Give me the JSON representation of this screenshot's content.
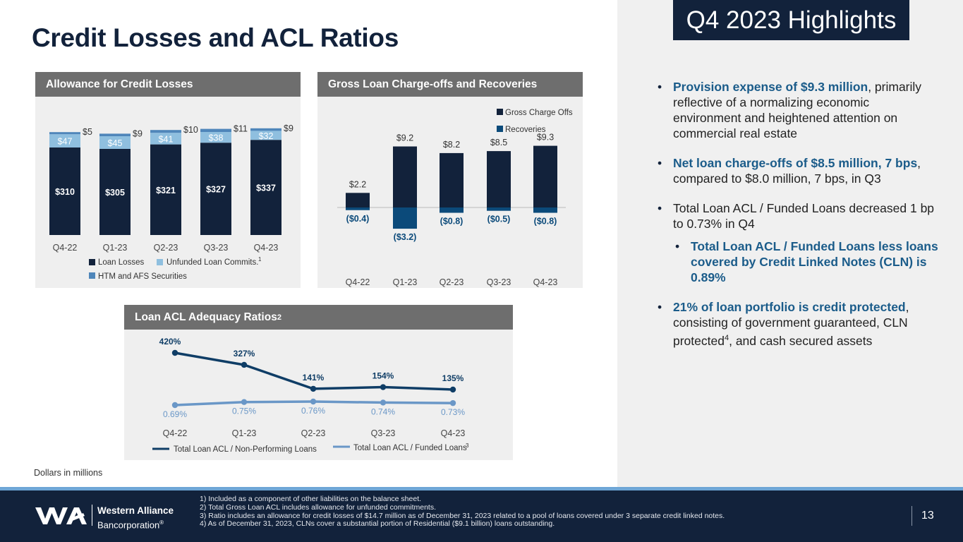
{
  "title": "Credit Losses and ACL Ratios",
  "badge": "Q4 2023 Highlights",
  "units_note": "Dollars in millions",
  "bullets": [
    {
      "highlight": "Provision expense of $9.3 million",
      "text": ", primarily reflective of a normalizing economic environment and heightened attention on commercial real estate"
    },
    {
      "highlight": "Net loan charge-offs of $8.5 million, 7 bps",
      "text": ", compared to $8.0 million, 7 bps, in Q3"
    },
    {
      "text": "Total Loan ACL / Funded Loans decreased 1 bp to 0.73% in Q4"
    },
    {
      "highlight": "Total Loan ACL / Funded Loans less loans covered by Credit Linked Notes (CLN) is 0.89%"
    },
    {
      "highlight": "21% of loan portfolio is credit protected",
      "text1": ", consisting of government guaranteed, CLN protected",
      "sup": "4",
      "text2": ", and cash secured assets"
    }
  ],
  "footer": {
    "company_line1": "Western Alliance",
    "company_line2": "Bancorporation",
    "reg": "®",
    "notes": [
      "1)   Included as a component of other liabilities on the balance sheet.",
      "2)   Total Gross Loan ACL includes allowance for unfunded commitments.",
      "3)   Ratio includes an allowance for credit losses of $14.7 million as of December 31, 2023 related to a pool of loans covered under 3 separate credit linked notes.",
      "4)   As of December 31, 2023, CLNs cover a substantial portion of Residential ($9.1 billion) loans outstanding."
    ],
    "page_number": "13"
  },
  "colors": {
    "navy": "#12223b",
    "light_blue": "#8fbfdf",
    "mid_blue": "#4f86ba",
    "dark_blue": "#0b4a7a",
    "line_dark": "#0f3d66",
    "line_light": "#6a97c7"
  },
  "chart_data": [
    {
      "type": "bar",
      "title": "Allowance for Credit Losses",
      "categories": [
        "Q4-22",
        "Q1-23",
        "Q2-23",
        "Q3-23",
        "Q4-23"
      ],
      "series": [
        {
          "name": "Loan Losses",
          "values": [
            310,
            305,
            321,
            327,
            337
          ],
          "labels": [
            "$310",
            "$305",
            "$321",
            "$327",
            "$337"
          ]
        },
        {
          "name": "Unfunded Loan Commits.",
          "sup": "1",
          "values": [
            47,
            45,
            41,
            38,
            32
          ],
          "labels": [
            "$47",
            "$45",
            "$41",
            "$38",
            "$32"
          ]
        },
        {
          "name": "HTM and AFS Securities",
          "values": [
            5,
            9,
            10,
            11,
            9
          ],
          "labels": [
            "$5",
            "$9",
            "$10",
            "$11",
            "$9"
          ]
        }
      ]
    },
    {
      "type": "bar",
      "title": "Gross Loan Charge-offs and Recoveries",
      "categories": [
        "Q4-22",
        "Q1-23",
        "Q2-23",
        "Q3-23",
        "Q4-23"
      ],
      "series": [
        {
          "name": "Gross Charge Offs",
          "values": [
            2.2,
            9.2,
            8.2,
            8.5,
            9.3
          ],
          "labels": [
            "$2.2",
            "$9.2",
            "$8.2",
            "$8.5",
            "$9.3"
          ]
        },
        {
          "name": "Recoveries",
          "values": [
            -0.4,
            -3.2,
            -0.8,
            -0.5,
            -0.8
          ],
          "labels": [
            "($0.4)",
            "($3.2)",
            "($0.8)",
            "($0.5)",
            "($0.8)"
          ]
        }
      ]
    },
    {
      "type": "line",
      "title": "Loan ACL Adequacy Ratios",
      "title_sup": "2",
      "categories": [
        "Q4-22",
        "Q1-23",
        "Q2-23",
        "Q3-23",
        "Q4-23"
      ],
      "series": [
        {
          "name": "Total Loan ACL / Non-Performing Loans",
          "values": [
            420,
            327,
            141,
            154,
            135
          ],
          "labels": [
            "420%",
            "327%",
            "141%",
            "154%",
            "135%"
          ]
        },
        {
          "name": "Total Loan ACL / Funded Loans",
          "sup": "3",
          "values": [
            0.69,
            0.75,
            0.76,
            0.74,
            0.73
          ],
          "labels": [
            "0.69%",
            "0.75%",
            "0.76%",
            "0.74%",
            "0.73%"
          ]
        }
      ]
    }
  ]
}
